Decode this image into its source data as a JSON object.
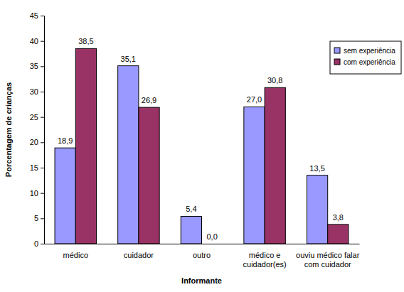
{
  "chart_data": {
    "type": "bar",
    "x_label": "Informante",
    "y_label": "Porcentagem de crianças",
    "categories": [
      "médico",
      "cuidador",
      "outro",
      "médico e\ncuidador(es)",
      "ouviu médico falar\ncom cuidador"
    ],
    "series": [
      {
        "name": "sem experiência",
        "color": "#9999ff",
        "values": [
          18.9,
          35.1,
          5.4,
          27.0,
          13.5
        ],
        "value_labels": [
          "18,9",
          "35,1",
          "5,4",
          "27,0",
          "13,5"
        ]
      },
      {
        "name": "com experiência",
        "color": "#993366",
        "values": [
          38.5,
          26.9,
          0.0,
          30.8,
          3.8
        ],
        "value_labels": [
          "38,5",
          "26,9",
          "0,0",
          "30,8",
          "3,8"
        ]
      }
    ],
    "ylim": [
      0,
      45
    ],
    "yticks": [
      0,
      5,
      10,
      15,
      20,
      25,
      30,
      35,
      40,
      45
    ],
    "grid": false,
    "legend": "top-right",
    "data_labels": true
  }
}
